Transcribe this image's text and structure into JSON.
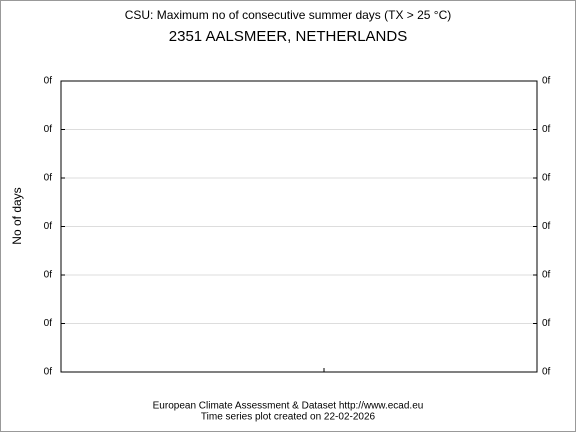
{
  "chart_data": {
    "type": "line",
    "title": "CSU: Maximum no of consecutive summer days (TX > 25 °C)",
    "subtitle": "2351 AALSMEER, NETHERLANDS",
    "y_label": "No of days",
    "series": [],
    "ylim": [
      0,
      6
    ],
    "yticks": [
      {
        "value": 0,
        "label": "0f"
      },
      {
        "value": 1,
        "label": "0f"
      },
      {
        "value": 2,
        "label": "0f"
      },
      {
        "value": 3,
        "label": "0f"
      },
      {
        "value": 4,
        "label": "0f"
      },
      {
        "value": 5,
        "label": "0f"
      },
      {
        "value": 6,
        "label": "0f"
      }
    ],
    "grid": true,
    "footer": [
      "European Climate Assessment & Dataset  http://www.ecad.eu",
      "Time series plot created on 22-02-2026"
    ]
  }
}
